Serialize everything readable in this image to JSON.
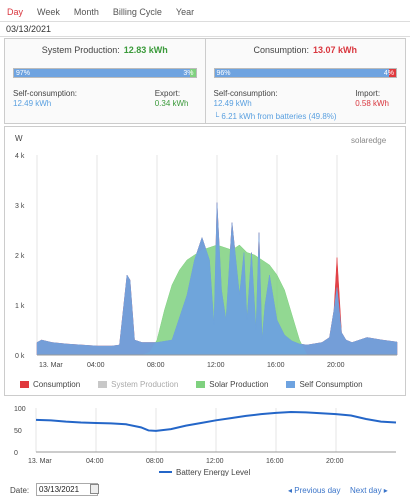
{
  "tabs": [
    {
      "label": "Day",
      "active": true
    },
    {
      "label": "Week",
      "active": false
    },
    {
      "label": "Month",
      "active": false
    },
    {
      "label": "Billing Cycle",
      "active": false
    },
    {
      "label": "Year",
      "active": false
    }
  ],
  "current_date": "03/13/2021",
  "production": {
    "title": "System Production:",
    "value": "12.83 kWh",
    "bar_left_pct": "97%",
    "bar_right_pct": "3%",
    "self_label": "Self-consumption:",
    "self_value": "12.49 kWh",
    "export_label": "Export:",
    "export_value": "0.34 kWh"
  },
  "consumption": {
    "title": "Consumption:",
    "value": "13.07 kWh",
    "bar_left_pct": "96%",
    "bar_right_pct": "4%",
    "self_label": "Self-consumption:",
    "self_value": "12.49 kWh",
    "battery_note": "└ 6.21 kWh from batteries (49.8%)",
    "import_label": "Import:",
    "import_value": "0.58 kWh"
  },
  "brand": "solaredge",
  "colors": {
    "consumption": "#e0393e",
    "system_production": "#c8c8c8",
    "solar_production": "#7fd17f",
    "self_consumption": "#6ea3e0",
    "battery_line": "#2466c8",
    "accent": "#d9363e"
  },
  "chart_data": [
    {
      "type": "area",
      "ylabel": "W",
      "y_ticks": [
        "0 k",
        "1 k",
        "2 k",
        "3 k",
        "4 k"
      ],
      "ylim": [
        0,
        4000
      ],
      "x_ticks": [
        "13. Mar",
        "04:00",
        "08:00",
        "12:00",
        "16:00",
        "20:00"
      ],
      "x_range_hours": [
        0,
        24
      ],
      "grid": "vertical",
      "legend": "bottom",
      "legend_items": [
        "Consumption",
        "System Production",
        "Solar Production",
        "Self Consumption"
      ],
      "series": [
        {
          "name": "Solar Production",
          "x": [
            0,
            6,
            7,
            7.5,
            8,
            8.5,
            9,
            9.5,
            10,
            10.5,
            11,
            11.5,
            12,
            12.5,
            13,
            13.5,
            14,
            14.5,
            15,
            15.5,
            16,
            16.5,
            17,
            17.5,
            18,
            24
          ],
          "values": [
            0,
            0,
            0,
            50,
            300,
            900,
            1400,
            1700,
            1900,
            2000,
            2100,
            2150,
            2200,
            2150,
            2100,
            2200,
            2050,
            2000,
            1900,
            1800,
            1600,
            1300,
            800,
            300,
            0,
            0
          ]
        },
        {
          "name": "Self Consumption",
          "x": [
            0,
            0.3,
            1,
            2,
            3,
            4,
            5,
            5.5,
            6,
            6.2,
            6.5,
            7,
            8,
            9,
            10,
            10.5,
            11,
            11.5,
            11.8,
            12,
            12.3,
            12.6,
            13,
            13.5,
            13.8,
            14,
            14.3,
            14.6,
            14.8,
            15,
            15.2,
            15.5,
            16,
            16.5,
            17,
            17.5,
            18,
            19,
            19.5,
            19.8,
            20,
            20.3,
            20.6,
            21,
            21.5,
            22,
            23,
            24
          ],
          "values": [
            250,
            300,
            250,
            220,
            200,
            180,
            180,
            200,
            1600,
            1500,
            300,
            250,
            250,
            300,
            1200,
            1900,
            2350,
            1900,
            600,
            3050,
            1300,
            700,
            2650,
            1200,
            2050,
            700,
            2050,
            500,
            2450,
            300,
            1000,
            1600,
            700,
            400,
            280,
            220,
            200,
            250,
            350,
            900,
            1350,
            450,
            300,
            250,
            300,
            350,
            300,
            260
          ]
        },
        {
          "name": "Consumption",
          "x": [
            0,
            0.3,
            1,
            2,
            3,
            4,
            5,
            5.5,
            6,
            6.2,
            6.5,
            7,
            8,
            9,
            10,
            10.5,
            11,
            11.5,
            11.8,
            12,
            12.3,
            12.6,
            13,
            13.5,
            13.8,
            14,
            14.3,
            14.6,
            14.8,
            15,
            15.2,
            15.5,
            16,
            16.5,
            17,
            17.5,
            18,
            19,
            19.5,
            19.8,
            20,
            20.3,
            20.6,
            21,
            21.5,
            22,
            23,
            24
          ],
          "values": [
            250,
            300,
            250,
            220,
            200,
            180,
            180,
            200,
            1600,
            1500,
            300,
            250,
            250,
            300,
            1200,
            1900,
            2350,
            1900,
            600,
            3050,
            1300,
            700,
            2650,
            1200,
            2050,
            700,
            2050,
            500,
            2450,
            300,
            1000,
            1600,
            700,
            400,
            280,
            220,
            200,
            250,
            350,
            900,
            1950,
            450,
            300,
            250,
            300,
            350,
            300,
            260
          ]
        }
      ]
    },
    {
      "type": "line",
      "y_ticks": [
        "0",
        "50",
        "100"
      ],
      "ylim": [
        0,
        100
      ],
      "x_ticks": [
        "13. Mar",
        "04:00",
        "08:00",
        "12:00",
        "16:00",
        "20:00"
      ],
      "legend_items": [
        "Battery Energy Level"
      ],
      "series": [
        {
          "name": "Battery Energy Level",
          "x": [
            0,
            1,
            2,
            3,
            4,
            5,
            6,
            7,
            7.5,
            8,
            9,
            10,
            11,
            12,
            13,
            14,
            15,
            16,
            17,
            18,
            19,
            20,
            21,
            22,
            23,
            24
          ],
          "values": [
            73,
            72,
            69,
            67,
            66,
            65,
            63,
            56,
            49,
            48,
            52,
            60,
            66,
            72,
            77,
            82,
            86,
            89,
            91,
            90,
            88,
            86,
            83,
            75,
            69,
            67
          ]
        }
      ]
    }
  ],
  "footer": {
    "date_label": "Date:",
    "date_value": "03/13/2021",
    "prev_label": "◂ Previous day",
    "next_label": "Next day ▸"
  }
}
